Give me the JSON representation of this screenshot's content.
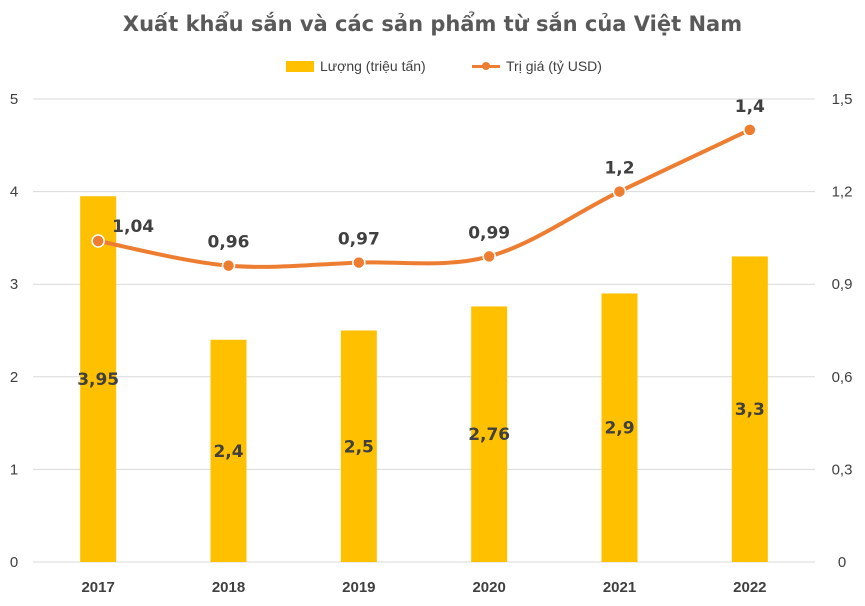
{
  "chart_data": {
    "type": "bar+line",
    "title": "Xuất khẩu sắn và các sản phẩm từ sắn của Việt Nam",
    "categories": [
      "2017",
      "2018",
      "2019",
      "2020",
      "2021",
      "2022"
    ],
    "series": [
      {
        "name": "Lượng (triệu tấn)",
        "type": "bar",
        "axis": "left",
        "values": [
          3.95,
          2.4,
          2.5,
          2.76,
          2.9,
          3.3
        ],
        "labels": [
          "3,95",
          "2,4",
          "2,5",
          "2,76",
          "2,9",
          "3,3"
        ]
      },
      {
        "name": "Trị giá (tỷ USD)",
        "type": "line",
        "axis": "right",
        "values": [
          1.04,
          0.96,
          0.97,
          0.99,
          1.2,
          1.4
        ],
        "labels": [
          "1,04",
          "0,96",
          "0,97",
          "0,99",
          "1,2",
          "1,4"
        ]
      }
    ],
    "y_left": {
      "min": 0,
      "max": 5,
      "ticks": [
        "0",
        "1",
        "2",
        "3",
        "4",
        "5"
      ]
    },
    "y_right": {
      "min": 0,
      "max": 1.5,
      "ticks": [
        "0",
        "0,3",
        "0,6",
        "0,9",
        "1,2",
        "1,5"
      ]
    },
    "grid": true,
    "legend_position": "top-center",
    "colors": {
      "bar": "#FFC000",
      "line": "#ED7D31",
      "grid": "#D9D9D9",
      "text": "#404040"
    }
  }
}
